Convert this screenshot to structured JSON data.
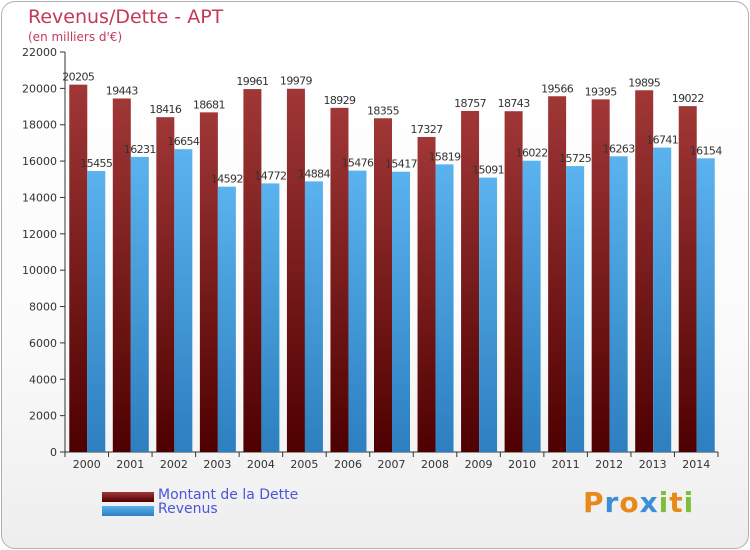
{
  "title": "Revenus/Dette - APT",
  "subtitle": "(en milliers d'€)",
  "chart_data": {
    "type": "bar",
    "categories": [
      "2000",
      "2001",
      "2002",
      "2003",
      "2004",
      "2005",
      "2006",
      "2007",
      "2008",
      "2009",
      "2010",
      "2011",
      "2012",
      "2013",
      "2014"
    ],
    "series": [
      {
        "name": "Montant de la Dette",
        "color": "#8b1a1a",
        "values": [
          20205,
          19443,
          18416,
          18681,
          19961,
          19979,
          18929,
          18355,
          17327,
          18757,
          18743,
          19566,
          19395,
          19895,
          19022
        ]
      },
      {
        "name": "Revenus",
        "color": "#4ea8e6",
        "values": [
          15455,
          16231,
          16654,
          14592,
          14772,
          14884,
          15476,
          15417,
          15819,
          15091,
          16022,
          15725,
          16263,
          16741,
          16154
        ]
      }
    ],
    "ylim": [
      0,
      22000
    ],
    "yticks": [
      0,
      2000,
      4000,
      6000,
      8000,
      10000,
      12000,
      14000,
      16000,
      18000,
      20000,
      22000
    ],
    "grid": false,
    "legend_position": "bottom-left"
  },
  "legend": [
    {
      "label": "Montant de la Dette",
      "color": "#8b1a1a"
    },
    {
      "label": "Revenus",
      "color": "#4ea8e6"
    }
  ],
  "logo": {
    "letters": [
      "P",
      "r",
      "o",
      "x",
      "i",
      "t",
      "i"
    ],
    "colors": [
      "#e8891c",
      "#3a8fd6",
      "#e8891c",
      "#3a8fd6",
      "#7cbf3a",
      "#e8891c",
      "#7cbf3a"
    ]
  }
}
